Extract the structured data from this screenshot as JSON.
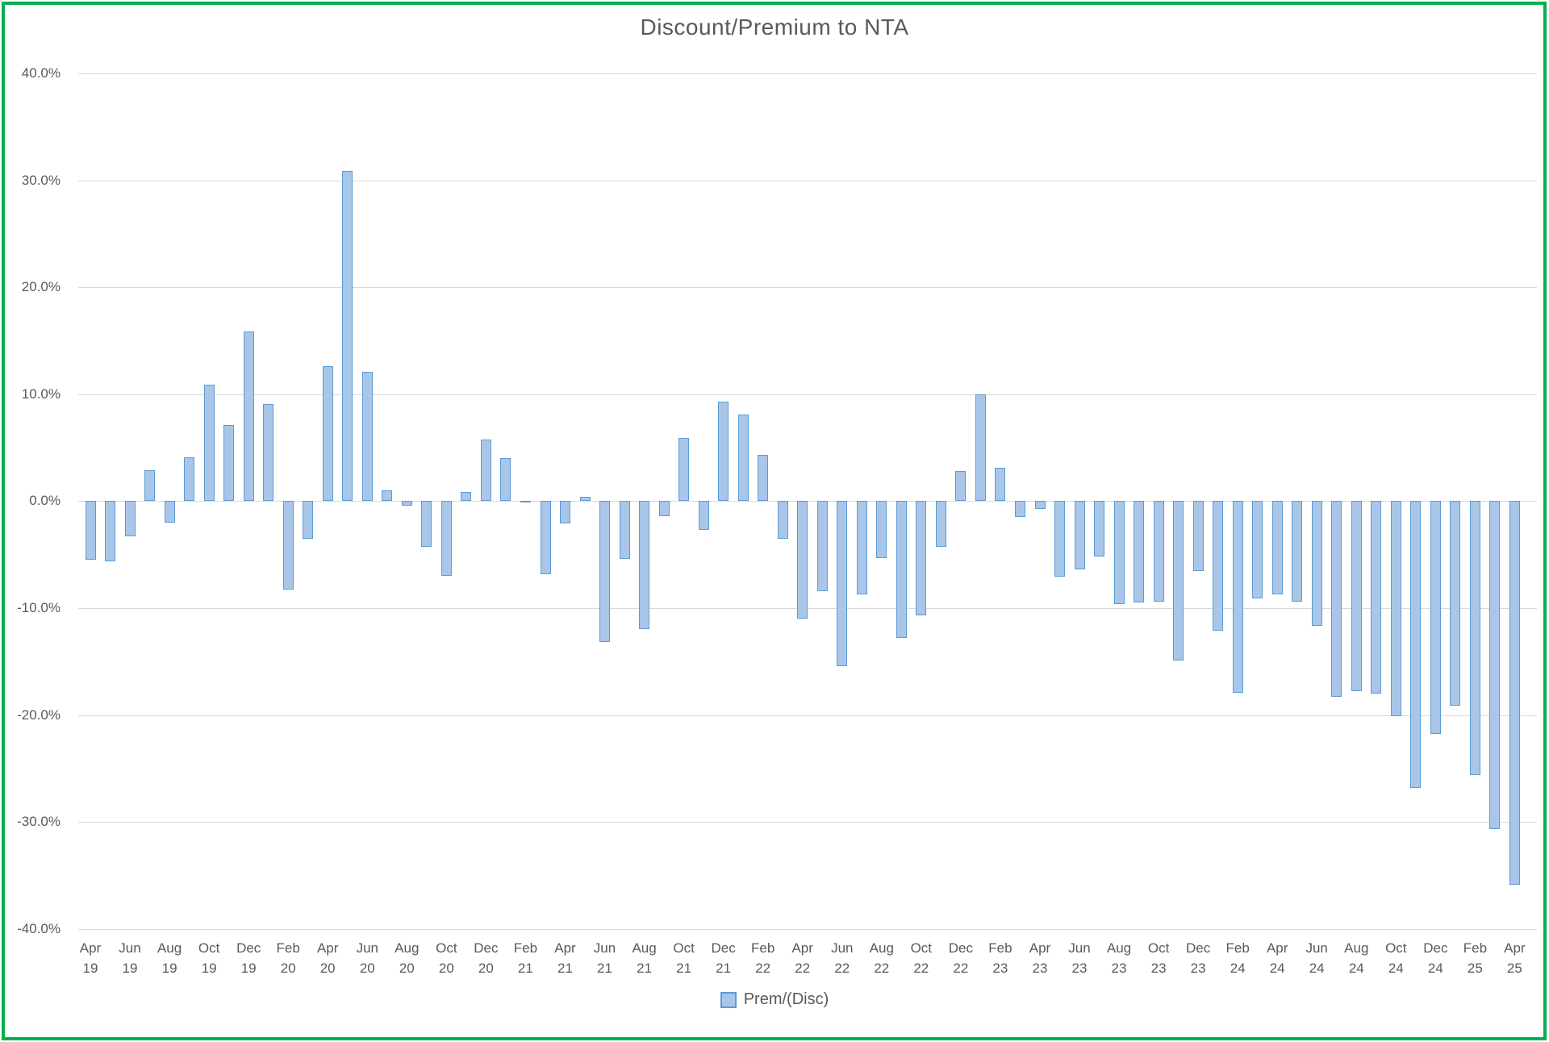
{
  "title": "Discount/Premium to NTA",
  "legend": {
    "label": "Prem/(Disc)"
  },
  "colors": {
    "bar_fill": "#A9C6E9",
    "bar_border": "#5B9BD5",
    "gridline": "#D9D9D9",
    "axis_text": "#595959",
    "title_text": "#595959",
    "frame_border": "#00B050",
    "background": "#FFFFFF"
  },
  "chart_data": {
    "type": "bar",
    "title": "Discount/Premium to NTA",
    "xlabel": "",
    "ylabel": "",
    "ylim": [
      -40,
      40
    ],
    "y_tick_interval": 10,
    "y_tick_labels": [
      "40.0%",
      "30.0%",
      "20.0%",
      "10.0%",
      "0.0%",
      "-10.0%",
      "-20.0%",
      "-30.0%",
      "-40.0%"
    ],
    "x_tick_every": 2,
    "grid": true,
    "legend_position": "bottom",
    "categories": [
      "Apr 19",
      "May 19",
      "Jun 19",
      "Jul 19",
      "Aug 19",
      "Sep 19",
      "Oct 19",
      "Nov 19",
      "Dec 19",
      "Jan 20",
      "Feb 20",
      "Mar 20",
      "Apr 20",
      "May 20",
      "Jun 20",
      "Jul 20",
      "Aug 20",
      "Sep 20",
      "Oct 20",
      "Nov 20",
      "Dec 20",
      "Jan 21",
      "Feb 21",
      "Mar 21",
      "Apr 21",
      "May 21",
      "Jun 21",
      "Jul 21",
      "Aug 21",
      "Sep 21",
      "Oct 21",
      "Nov 21",
      "Dec 21",
      "Jan 22",
      "Feb 22",
      "Mar 22",
      "Apr 22",
      "May 22",
      "Jun 22",
      "Jul 22",
      "Aug 22",
      "Sep 22",
      "Oct 22",
      "Nov 22",
      "Dec 22",
      "Jan 23",
      "Feb 23",
      "Mar 23",
      "Apr 23",
      "May 23",
      "Jun 23",
      "Jul 23",
      "Aug 23",
      "Sep 23",
      "Oct 23",
      "Nov 23",
      "Dec 23",
      "Jan 24",
      "Feb 24",
      "Mar 24",
      "Apr 24",
      "May 24",
      "Jun 24",
      "Jul 24",
      "Aug 24",
      "Sep 24",
      "Oct 24",
      "Nov 24",
      "Dec 24",
      "Jan 25",
      "Feb 25",
      "Mar 25",
      "Apr 25"
    ],
    "series": [
      {
        "name": "Prem/(Disc)",
        "values": [
          -5.5,
          -5.6,
          -3.3,
          2.9,
          -2.0,
          4.1,
          10.9,
          7.1,
          15.9,
          9.1,
          -8.3,
          -3.5,
          12.6,
          30.9,
          12.1,
          1.0,
          -0.4,
          -4.3,
          -7.0,
          0.9,
          5.8,
          4.0,
          -0.1,
          -6.8,
          -2.1,
          0.4,
          -13.2,
          -5.4,
          -12.0,
          -1.4,
          5.9,
          -2.7,
          9.3,
          8.1,
          4.3,
          -3.5,
          -11.0,
          -8.4,
          -15.4,
          -8.7,
          -5.3,
          -12.8,
          -10.7,
          -4.3,
          2.8,
          10.0,
          3.1,
          -1.5,
          -0.7,
          -7.1,
          -6.4,
          -5.2,
          -9.6,
          -9.5,
          -9.4,
          -14.9,
          -6.5,
          -12.1,
          -17.9,
          -9.1,
          -8.7,
          -9.4,
          -11.7,
          -18.3,
          -17.8,
          -18.0,
          -20.1,
          -26.8,
          -21.8,
          -19.1,
          -25.6,
          -30.7,
          -35.9
        ]
      }
    ]
  }
}
